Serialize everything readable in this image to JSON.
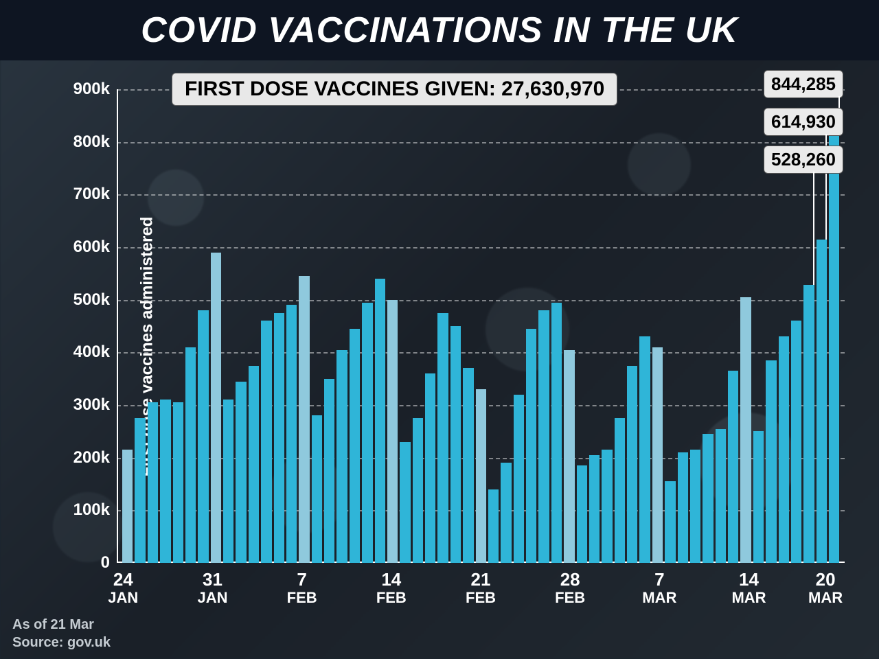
{
  "title": "COVID VACCINATIONS IN THE UK",
  "summary_label": "FIRST DOSE VACCINES GIVEN: 27,630,970",
  "y_axis_label": "First dose vaccines administered",
  "footer_date": "As of 21 Mar",
  "footer_source": "Source: gov.uk",
  "chart": {
    "type": "bar",
    "background_color": "#1a2530",
    "title_bg": "#0e1522",
    "title_color": "#ffffff",
    "bar_color_weekday": "#2fb5d8",
    "bar_color_sunday": "#8fc9dd",
    "grid_color": "rgba(255,255,255,0.45)",
    "axis_color": "#ffffff",
    "text_color": "#ffffff",
    "callout_bg": "#eaeaea",
    "callout_text": "#000000",
    "ylim": [
      0,
      900000
    ],
    "ytick_step": 100000,
    "y_ticks": [
      "0",
      "100k",
      "200k",
      "300k",
      "400k",
      "500k",
      "600k",
      "700k",
      "800k",
      "900k"
    ],
    "x_ticks": [
      {
        "index": 0,
        "day": "24",
        "mon": "JAN"
      },
      {
        "index": 7,
        "day": "31",
        "mon": "JAN"
      },
      {
        "index": 14,
        "day": "7",
        "mon": "FEB"
      },
      {
        "index": 21,
        "day": "14",
        "mon": "FEB"
      },
      {
        "index": 28,
        "day": "21",
        "mon": "FEB"
      },
      {
        "index": 35,
        "day": "28",
        "mon": "FEB"
      },
      {
        "index": 42,
        "day": "7",
        "mon": "MAR"
      },
      {
        "index": 49,
        "day": "14",
        "mon": "MAR"
      },
      {
        "index": 55,
        "day": "20",
        "mon": "MAR"
      }
    ],
    "bars": [
      {
        "v": 215000,
        "sun": true
      },
      {
        "v": 275000,
        "sun": false
      },
      {
        "v": 305000,
        "sun": false
      },
      {
        "v": 310000,
        "sun": false
      },
      {
        "v": 305000,
        "sun": false
      },
      {
        "v": 410000,
        "sun": false
      },
      {
        "v": 480000,
        "sun": false
      },
      {
        "v": 590000,
        "sun": true
      },
      {
        "v": 310000,
        "sun": false
      },
      {
        "v": 345000,
        "sun": false
      },
      {
        "v": 375000,
        "sun": false
      },
      {
        "v": 460000,
        "sun": false
      },
      {
        "v": 475000,
        "sun": false
      },
      {
        "v": 490000,
        "sun": false
      },
      {
        "v": 545000,
        "sun": true
      },
      {
        "v": 280000,
        "sun": false
      },
      {
        "v": 350000,
        "sun": false
      },
      {
        "v": 405000,
        "sun": false
      },
      {
        "v": 445000,
        "sun": false
      },
      {
        "v": 495000,
        "sun": false
      },
      {
        "v": 540000,
        "sun": false
      },
      {
        "v": 500000,
        "sun": true
      },
      {
        "v": 230000,
        "sun": false
      },
      {
        "v": 275000,
        "sun": false
      },
      {
        "v": 360000,
        "sun": false
      },
      {
        "v": 475000,
        "sun": false
      },
      {
        "v": 450000,
        "sun": false
      },
      {
        "v": 370000,
        "sun": false
      },
      {
        "v": 330000,
        "sun": true
      },
      {
        "v": 140000,
        "sun": false
      },
      {
        "v": 190000,
        "sun": false
      },
      {
        "v": 320000,
        "sun": false
      },
      {
        "v": 445000,
        "sun": false
      },
      {
        "v": 480000,
        "sun": false
      },
      {
        "v": 495000,
        "sun": false
      },
      {
        "v": 405000,
        "sun": true
      },
      {
        "v": 185000,
        "sun": false
      },
      {
        "v": 205000,
        "sun": false
      },
      {
        "v": 215000,
        "sun": false
      },
      {
        "v": 275000,
        "sun": false
      },
      {
        "v": 375000,
        "sun": false
      },
      {
        "v": 430000,
        "sun": false
      },
      {
        "v": 410000,
        "sun": true
      },
      {
        "v": 155000,
        "sun": false
      },
      {
        "v": 210000,
        "sun": false
      },
      {
        "v": 215000,
        "sun": false
      },
      {
        "v": 245000,
        "sun": false
      },
      {
        "v": 255000,
        "sun": false
      },
      {
        "v": 365000,
        "sun": false
      },
      {
        "v": 505000,
        "sun": true
      },
      {
        "v": 250000,
        "sun": false
      },
      {
        "v": 385000,
        "sun": false
      },
      {
        "v": 430000,
        "sun": false
      },
      {
        "v": 460000,
        "sun": false
      },
      {
        "v": 528260,
        "sun": false
      },
      {
        "v": 614930,
        "sun": false
      },
      {
        "v": 844285,
        "sun": false
      }
    ],
    "callouts": [
      {
        "bar_index": 56,
        "label": "844,285",
        "top_offset": 0
      },
      {
        "bar_index": 55,
        "label": "614,930",
        "top_offset": 55
      },
      {
        "bar_index": 54,
        "label": "528,260",
        "top_offset": 110
      }
    ]
  }
}
